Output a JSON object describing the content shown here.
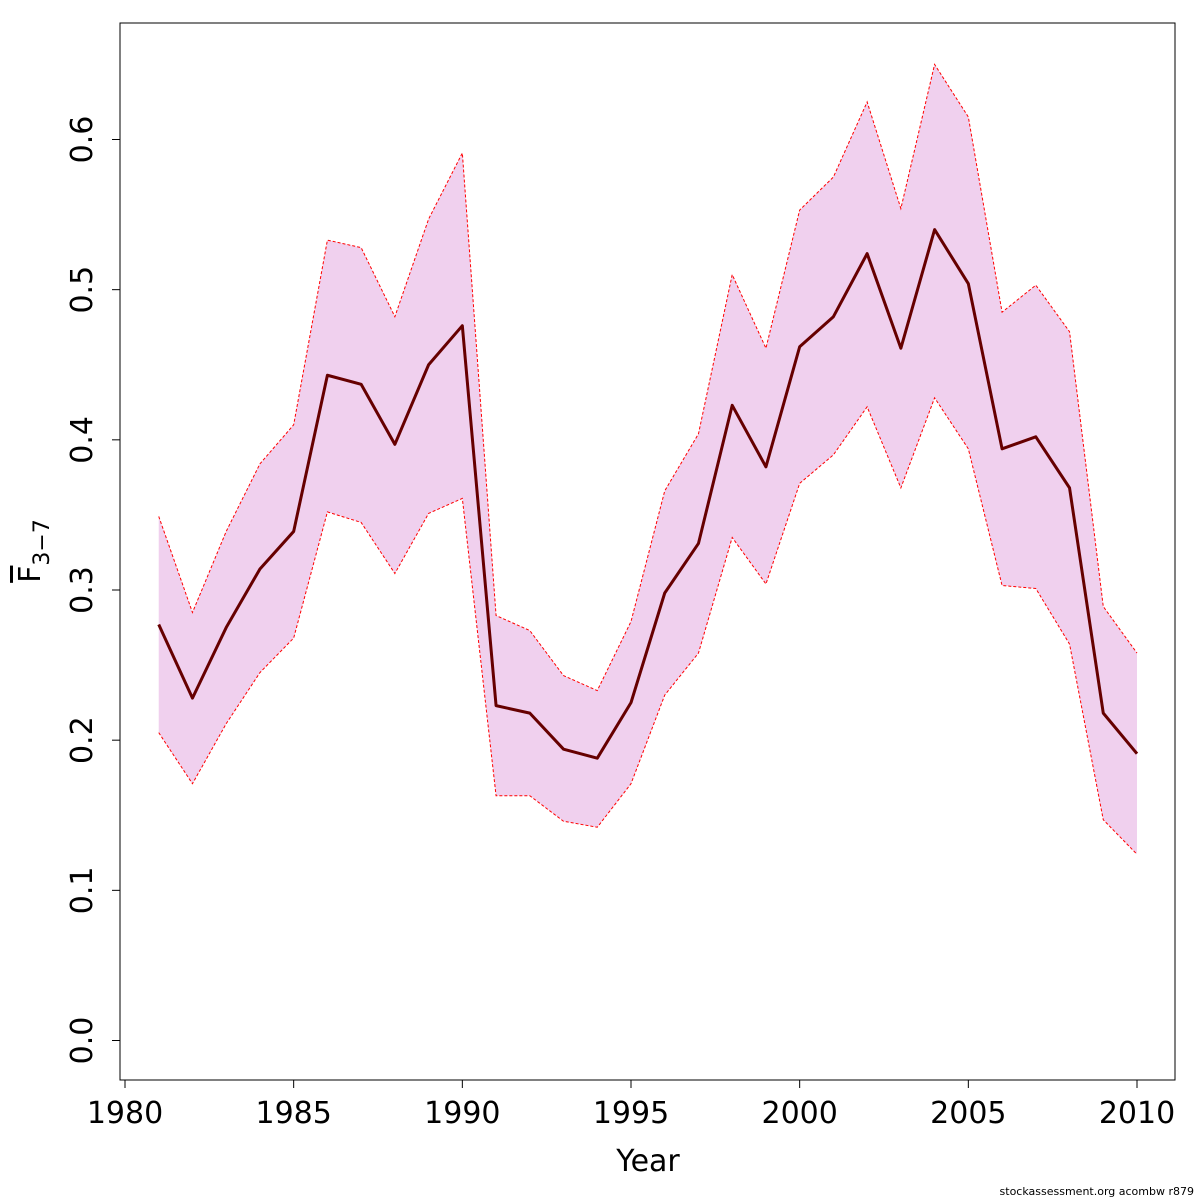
{
  "chart_data": {
    "type": "line",
    "title": "",
    "xlabel": "Year",
    "ylabel": "F",
    "ylabel_subscript": "3−7",
    "xlim": [
      1980,
      2010
    ],
    "ylim": [
      0.0,
      0.65
    ],
    "x_ticks": [
      1980,
      1985,
      1990,
      1995,
      2000,
      2005,
      2010
    ],
    "y_ticks": [
      0.0,
      0.1,
      0.2,
      0.3,
      0.4,
      0.5,
      0.6
    ],
    "x_tick_labels": [
      "1980",
      "1985",
      "1990",
      "1995",
      "2000",
      "2005",
      "2010"
    ],
    "y_tick_labels": [
      "0.0",
      "0.1",
      "0.2",
      "0.3",
      "0.4",
      "0.5",
      "0.6"
    ],
    "grid": false,
    "x": [
      1981,
      1982,
      1983,
      1984,
      1985,
      1986,
      1987,
      1988,
      1989,
      1990,
      1991,
      1992,
      1993,
      1994,
      1995,
      1996,
      1997,
      1998,
      1999,
      2000,
      2001,
      2002,
      2003,
      2004,
      2005,
      2006,
      2007,
      2008,
      2009,
      2010
    ],
    "series": [
      {
        "role": "estimate",
        "color": "#660000",
        "values": [
          0.277,
          0.228,
          0.275,
          0.314,
          0.339,
          0.443,
          0.437,
          0.397,
          0.45,
          0.476,
          0.223,
          0.218,
          0.194,
          0.188,
          0.225,
          0.298,
          0.331,
          0.423,
          0.382,
          0.462,
          0.482,
          0.524,
          0.461,
          0.54,
          0.504,
          0.394,
          0.402,
          0.368,
          0.218,
          0.191
        ]
      },
      {
        "role": "upper_bound",
        "color": "#ff0000",
        "values": [
          0.349,
          0.285,
          0.339,
          0.384,
          0.41,
          0.533,
          0.528,
          0.482,
          0.547,
          0.591,
          0.283,
          0.273,
          0.243,
          0.233,
          0.279,
          0.366,
          0.404,
          0.51,
          0.461,
          0.553,
          0.575,
          0.625,
          0.554,
          0.65,
          0.615,
          0.485,
          0.503,
          0.472,
          0.289,
          0.258
        ]
      },
      {
        "role": "lower_bound",
        "color": "#ff0000",
        "values": [
          0.205,
          0.171,
          0.211,
          0.245,
          0.268,
          0.352,
          0.345,
          0.311,
          0.351,
          0.361,
          0.163,
          0.163,
          0.146,
          0.142,
          0.171,
          0.23,
          0.258,
          0.335,
          0.304,
          0.371,
          0.39,
          0.422,
          0.368,
          0.428,
          0.394,
          0.303,
          0.301,
          0.264,
          0.147,
          0.124
        ]
      }
    ],
    "band_color": "#f0d0ee"
  },
  "footer": {
    "credit": "stockassessment.org acombw r879"
  }
}
